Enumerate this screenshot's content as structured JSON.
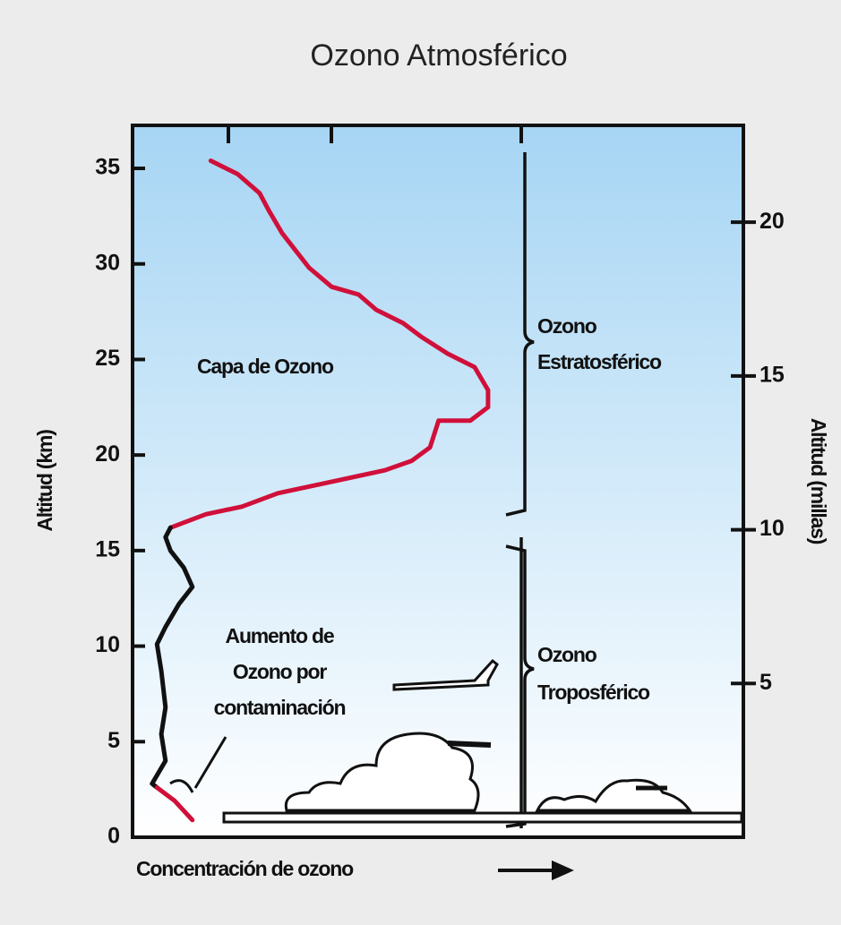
{
  "chart_data": {
    "type": "line",
    "title": "Ozono Atmosférico",
    "x_label": "Concentración de ozono",
    "y_label": "Altitud (km)",
    "y2_label": "Altitud (millas)",
    "annotations": {
      "layer": "Capa de Ozono",
      "pollution": [
        "Aumento de",
        "Ozono por",
        "contaminación"
      ],
      "stratospheric": [
        "Ozono",
        "Estratosférico"
      ],
      "tropospheric": [
        "Ozono",
        "Troposférico"
      ]
    },
    "xlim": [
      0,
      100
    ],
    "ylim": [
      0,
      37.25
    ],
    "yticks": [
      0,
      5,
      10,
      15,
      20,
      25,
      30,
      35
    ],
    "y2lim": [
      0,
      23.15
    ],
    "y2ticks": [
      5,
      10,
      15,
      20
    ],
    "series": [
      {
        "color": "#d0103a",
        "x": [
          12.8,
          17.2,
          20.8,
          22.3,
          24.5,
          26.7,
          28.9,
          32.6,
          37.0,
          39.9,
          44.3,
          47.2,
          51.6,
          56.0,
          58.2,
          58.2,
          55.3,
          50.1,
          49.4,
          48.7,
          45.7,
          41.3,
          34.0,
          23.8,
          17.9,
          12.0,
          6.2
        ],
        "values": [
          35.4,
          34.7,
          33.7,
          32.8,
          31.6,
          30.7,
          29.8,
          28.8,
          28.4,
          27.6,
          26.9,
          26.2,
          25.3,
          24.6,
          23.4,
          22.5,
          21.8,
          21.8,
          21.1,
          20.4,
          19.7,
          19.2,
          18.7,
          18.0,
          17.3,
          16.9,
          16.2
        ]
      },
      {
        "color": "#111111",
        "x": [
          6.2,
          5.4,
          6.2,
          8.4,
          9.8,
          7.6,
          5.4,
          4.0,
          4.7,
          5.4,
          4.7,
          5.4,
          3.2,
          4.0
        ],
        "values": [
          16.2,
          15.7,
          15.0,
          14.1,
          13.1,
          12.2,
          11.0,
          10.1,
          8.7,
          6.8,
          5.4,
          4.0,
          2.8,
          2.6
        ]
      },
      {
        "color": "#d0103a",
        "x": [
          4.0,
          6.9,
          9.8
        ],
        "values": [
          2.6,
          1.9,
          0.9
        ]
      }
    ]
  }
}
